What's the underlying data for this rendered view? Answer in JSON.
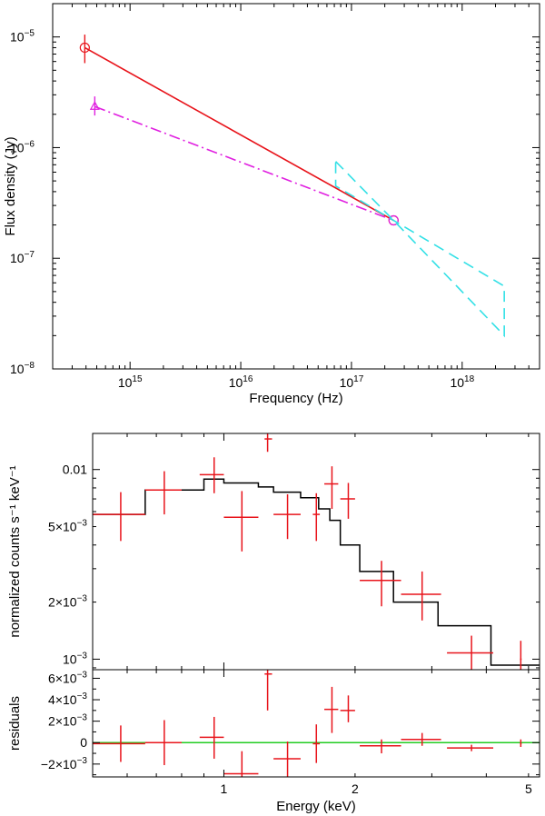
{
  "chart_data": [
    {
      "type": "line",
      "scale": "log-log",
      "xlabel": "Frequency (Hz)",
      "ylabel": "Flux density (Jy)",
      "xlim": [
        200000000000000.0,
        5e+18
      ],
      "ylim": [
        1e-08,
        2e-05
      ],
      "x_ticks": [
        {
          "value": 1000000000000000.0,
          "base": "10",
          "exp": "15"
        },
        {
          "value": 1e+16,
          "base": "10",
          "exp": "16"
        },
        {
          "value": 1e+17,
          "base": "10",
          "exp": "17"
        },
        {
          "value": 1e+18,
          "base": "10",
          "exp": "18"
        }
      ],
      "y_ticks": [
        {
          "value": 1e-05,
          "base": "10",
          "exp": "−5"
        },
        {
          "value": 1e-06,
          "base": "10",
          "exp": "−6"
        },
        {
          "value": 1e-07,
          "base": "10",
          "exp": "−7"
        },
        {
          "value": 1e-08,
          "base": "10",
          "exp": "−8"
        }
      ],
      "series": [
        {
          "name": "red power law",
          "color": "#e8141b",
          "style": "solid",
          "x": [
            390000000000000.0,
            2.4e+17
          ],
          "y": [
            8e-06,
            2.2e-07
          ],
          "markers": [
            {
              "shape": "circle",
              "x": 390000000000000.0,
              "y": 8e-06,
              "y_err": [
                5.8e-06,
                1.05e-05
              ]
            },
            {
              "shape": "circle",
              "x": 2.4e+17,
              "y": 2.2e-07
            }
          ]
        },
        {
          "name": "magenta power law",
          "color": "#e020e0",
          "style": "dash-dot",
          "x": [
            480000000000000.0,
            2.4e+17
          ],
          "y": [
            2.35e-06,
            2.2e-07
          ],
          "markers": [
            {
              "shape": "triangle",
              "x": 480000000000000.0,
              "y": 2.35e-06,
              "y_err": [
                1.95e-06,
                2.9e-06
              ]
            },
            {
              "shape": "circle",
              "x": 2.4e+17,
              "y": 2.2e-07
            }
          ]
        },
        {
          "name": "X-ray bow-tie",
          "color": "#33e0e6",
          "style": "dashed",
          "polygon": [
            {
              "x": 7.2e+16,
              "y": 7.5e-07
            },
            {
              "x": 2.4e+17,
              "y": 2.2e-07
            },
            {
              "x": 2.4e+18,
              "y": 2e-08
            },
            {
              "x": 2.4e+18,
              "y": 5.6e-08
            },
            {
              "x": 2.4e+17,
              "y": 2.2e-07
            },
            {
              "x": 7.2e+16,
              "y": 4.5e-07
            },
            {
              "x": 7.2e+16,
              "y": 7.5e-07
            }
          ]
        }
      ]
    },
    {
      "type": "step",
      "scale": "log-log",
      "xlabel": "Energy (keV)",
      "ylabel": "normalized counts s⁻¹ keV⁻¹",
      "xlim": [
        0.5,
        5.3
      ],
      "ylim": [
        0.00088,
        0.0155
      ],
      "x_ticks": [
        {
          "value": 1,
          "label": "1"
        },
        {
          "value": 2,
          "label": "2"
        },
        {
          "value": 5,
          "label": "5"
        }
      ],
      "y_ticks": [
        {
          "value": 0.01,
          "label": "0.01"
        },
        {
          "value": 0.005,
          "label": "5×10",
          "exp": "−3"
        },
        {
          "value": 0.002,
          "label": "2×10",
          "exp": "−3"
        },
        {
          "value": 0.001,
          "label": "10",
          "exp": "−3"
        }
      ],
      "model": {
        "name": "model",
        "color": "#000000",
        "edges": [
          0.5,
          0.66,
          0.8,
          0.9,
          1.0,
          1.2,
          1.3,
          1.5,
          1.65,
          1.75,
          1.85,
          2.05,
          2.45,
          3.1,
          4.1,
          5.3
        ],
        "values": [
          0.0058,
          0.0078,
          0.0078,
          0.0089,
          0.0085,
          0.0081,
          0.0076,
          0.0071,
          0.0062,
          0.0054,
          0.004,
          0.0029,
          0.002,
          0.0015,
          0.00093
        ]
      },
      "data": {
        "name": "data",
        "color": "#e8141b",
        "points": [
          {
            "x": 0.58,
            "xlo": 0.5,
            "xhi": 0.66,
            "y": 0.0058,
            "ylo": 0.0042,
            "yhi": 0.0076
          },
          {
            "x": 0.73,
            "xlo": 0.66,
            "xhi": 0.8,
            "y": 0.0078,
            "ylo": 0.0058,
            "yhi": 0.0098
          },
          {
            "x": 0.95,
            "xlo": 0.88,
            "xhi": 1.0,
            "y": 0.0094,
            "ylo": 0.0075,
            "yhi": 0.0116
          },
          {
            "x": 1.1,
            "xlo": 1.0,
            "xhi": 1.2,
            "y": 0.0056,
            "ylo": 0.0037,
            "yhi": 0.0077
          },
          {
            "x": 1.26,
            "xlo": 1.24,
            "xhi": 1.29,
            "y": 0.0145,
            "ylo": 0.0124,
            "yhi": 0.0158
          },
          {
            "x": 1.4,
            "xlo": 1.3,
            "xhi": 1.5,
            "y": 0.0058,
            "ylo": 0.0043,
            "yhi": 0.0074
          },
          {
            "x": 1.63,
            "xlo": 1.6,
            "xhi": 1.66,
            "y": 0.0058,
            "ylo": 0.0042,
            "yhi": 0.0075
          },
          {
            "x": 1.77,
            "xlo": 1.7,
            "xhi": 1.83,
            "y": 0.0084,
            "ylo": 0.0062,
            "yhi": 0.0104
          },
          {
            "x": 1.93,
            "xlo": 1.85,
            "xhi": 2.0,
            "y": 0.007,
            "ylo": 0.0055,
            "yhi": 0.0085
          },
          {
            "x": 2.3,
            "xlo": 2.05,
            "xhi": 2.55,
            "y": 0.0026,
            "ylo": 0.0019,
            "yhi": 0.0033
          },
          {
            "x": 2.85,
            "xlo": 2.55,
            "xhi": 3.15,
            "y": 0.0022,
            "ylo": 0.0016,
            "yhi": 0.0029
          },
          {
            "x": 3.7,
            "xlo": 3.25,
            "xhi": 4.15,
            "y": 0.00108,
            "ylo": 0.00088,
            "yhi": 0.00133
          },
          {
            "x": 4.8,
            "xlo": 4.78,
            "xhi": 4.82,
            "y": 0.001,
            "ylo": 0.00088,
            "yhi": 0.00125
          }
        ]
      }
    },
    {
      "type": "residuals",
      "scale": "log-linear",
      "xlabel": "Energy (keV)",
      "ylabel": "residuals",
      "xlim": [
        0.5,
        5.3
      ],
      "ylim": [
        -0.0032,
        0.0068
      ],
      "x_ticks": [
        {
          "value": 1,
          "label": "1"
        },
        {
          "value": 2,
          "label": "2"
        },
        {
          "value": 5,
          "label": "5"
        }
      ],
      "y_ticks": [
        {
          "value": 0.006,
          "label": "6×10",
          "exp": "−3"
        },
        {
          "value": 0.004,
          "label": "4×10",
          "exp": "−3"
        },
        {
          "value": 0.002,
          "label": "2×10",
          "exp": "−3"
        },
        {
          "value": 0,
          "label": "0"
        },
        {
          "value": -0.002,
          "label": "−2×10",
          "exp": "−3"
        }
      ],
      "zero_line": {
        "color": "#22cc22",
        "y": 0
      },
      "data": {
        "name": "residuals",
        "color": "#e8141b",
        "points": [
          {
            "x": 0.58,
            "xlo": 0.5,
            "xhi": 0.66,
            "y": -0.0001,
            "ylo": -0.0018,
            "yhi": 0.0016
          },
          {
            "x": 0.73,
            "xlo": 0.66,
            "xhi": 0.8,
            "y": 0.0,
            "ylo": -0.0021,
            "yhi": 0.0021
          },
          {
            "x": 0.95,
            "xlo": 0.88,
            "xhi": 1.0,
            "y": 0.0005,
            "ylo": -0.0015,
            "yhi": 0.0024
          },
          {
            "x": 1.1,
            "xlo": 1.0,
            "xhi": 1.2,
            "y": -0.0029,
            "ylo": -0.0045,
            "yhi": -0.0008
          },
          {
            "x": 1.26,
            "xlo": 1.24,
            "xhi": 1.29,
            "y": 0.0064,
            "ylo": 0.003,
            "yhi": 0.0078
          },
          {
            "x": 1.4,
            "xlo": 1.3,
            "xhi": 1.5,
            "y": -0.0015,
            "ylo": -0.0032,
            "yhi": 0.0001
          },
          {
            "x": 1.63,
            "xlo": 1.6,
            "xhi": 1.66,
            "y": -0.0001,
            "ylo": -0.0019,
            "yhi": 0.0017
          },
          {
            "x": 1.77,
            "xlo": 1.7,
            "xhi": 1.83,
            "y": 0.0031,
            "ylo": 0.0009,
            "yhi": 0.0052
          },
          {
            "x": 1.93,
            "xlo": 1.85,
            "xhi": 2.0,
            "y": 0.003,
            "ylo": 0.0019,
            "yhi": 0.0044
          },
          {
            "x": 2.3,
            "xlo": 2.05,
            "xhi": 2.55,
            "y": -0.0003,
            "ylo": -0.001,
            "yhi": 0.0003
          },
          {
            "x": 2.85,
            "xlo": 2.55,
            "xhi": 3.15,
            "y": 0.0003,
            "ylo": -0.0003,
            "yhi": 0.0009
          },
          {
            "x": 3.7,
            "xlo": 3.25,
            "xhi": 4.15,
            "y": -0.0005,
            "ylo": -0.0008,
            "yhi": -0.0002
          },
          {
            "x": 4.8,
            "xlo": 4.78,
            "xhi": 4.82,
            "y": -0.0001,
            "ylo": -0.0004,
            "yhi": 0.0003
          }
        ]
      }
    }
  ]
}
